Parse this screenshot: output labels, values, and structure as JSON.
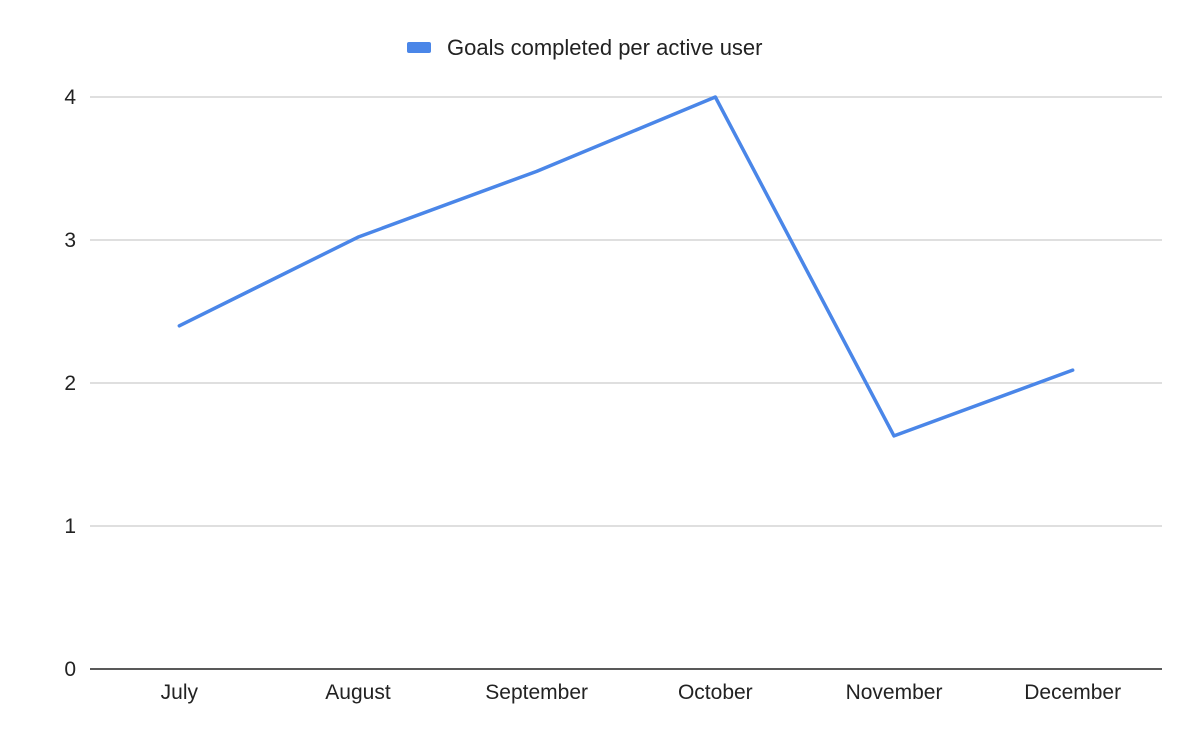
{
  "chart_data": {
    "type": "line",
    "title": "",
    "xlabel": "",
    "ylabel": "",
    "categories": [
      "July",
      "August",
      "September",
      "October",
      "November",
      "December"
    ],
    "series": [
      {
        "name": "Goals completed per active user",
        "values": [
          2.4,
          3.02,
          3.48,
          4.0,
          1.63,
          2.09
        ],
        "color": "#4a86e8"
      }
    ],
    "ylim": [
      0,
      4
    ],
    "yticks": [
      "0",
      "1",
      "2",
      "3",
      "4"
    ],
    "grid": true,
    "legend_position": "top"
  }
}
